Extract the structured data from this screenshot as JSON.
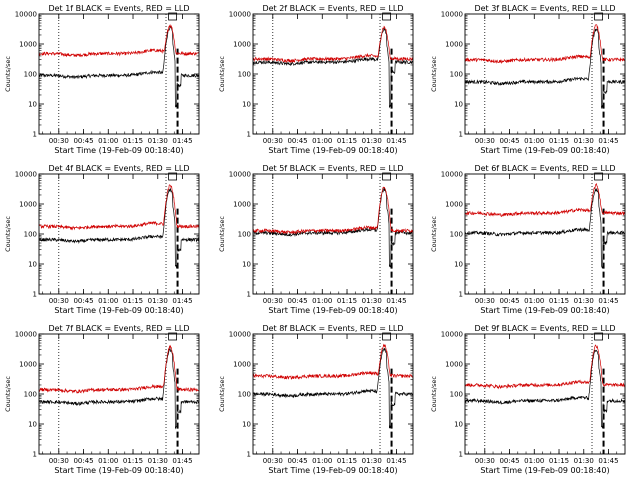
{
  "chart_data": [
    {
      "type": "line",
      "title": "Det 1f BLACK = Events, RED = LLD",
      "xlabel": "Start Time (19-Feb-09 00:18:40)",
      "ylabel": "Counts/sec",
      "yscale": "log",
      "ylim": [
        1,
        10000
      ],
      "xlim": [
        "00:18",
        "01:55"
      ],
      "xticks": [
        "00:30",
        "00:45",
        "01:00",
        "01:15",
        "01:30",
        "01:45"
      ],
      "yticks": [
        "1",
        "10",
        "100",
        "1000",
        "10000"
      ],
      "vlines": {
        "dotted": [
          "00:30",
          "01:35"
        ],
        "dashed": [
          "01:42"
        ]
      },
      "series": [
        {
          "color": "#000000",
          "base": 90,
          "peak": 3500
        },
        {
          "color": "#d00000",
          "base": 480,
          "peak": 4000
        }
      ]
    },
    {
      "type": "line",
      "title": "Det 2f BLACK = Events, RED = LLD",
      "xlabel": "Start Time (19-Feb-09 00:18:40)",
      "ylabel": "Counts/sec",
      "yscale": "log",
      "ylim": [
        1,
        10000
      ],
      "xlim": [
        "00:18",
        "01:55"
      ],
      "xticks": [
        "00:30",
        "00:45",
        "01:00",
        "01:15",
        "01:30",
        "01:45"
      ],
      "yticks": [
        "1",
        "10",
        "100",
        "1000",
        "10000"
      ],
      "vlines": {
        "dotted": [
          "00:30",
          "01:35"
        ],
        "dashed": [
          "01:42"
        ]
      },
      "series": [
        {
          "color": "#000000",
          "base": 250,
          "peak": 3000
        },
        {
          "color": "#d00000",
          "base": 320,
          "peak": 3500
        }
      ]
    },
    {
      "type": "line",
      "title": "Det 3f BLACK = Events, RED = LLD",
      "xlabel": "Start Time (19-Feb-09 00:18:40)",
      "ylabel": "Counts/sec",
      "yscale": "log",
      "ylim": [
        1,
        10000
      ],
      "xlim": [
        "00:18",
        "01:55"
      ],
      "xticks": [
        "00:30",
        "00:45",
        "01:00",
        "01:15",
        "01:30",
        "01:45"
      ],
      "yticks": [
        "1",
        "10",
        "100",
        "1000",
        "10000"
      ],
      "vlines": {
        "dotted": [
          "00:30",
          "01:35"
        ],
        "dashed": [
          "01:42"
        ]
      },
      "series": [
        {
          "color": "#000000",
          "base": 55,
          "peak": 3000
        },
        {
          "color": "#d00000",
          "base": 300,
          "peak": 4000
        }
      ]
    },
    {
      "type": "line",
      "title": "Det 4f BLACK = Events, RED = LLD",
      "xlabel": "Start Time (19-Feb-09 00:18:40)",
      "ylabel": "Counts/sec",
      "yscale": "log",
      "ylim": [
        1,
        10000
      ],
      "xlim": [
        "00:18",
        "01:55"
      ],
      "xticks": [
        "00:30",
        "00:45",
        "01:00",
        "01:15",
        "01:30",
        "01:45"
      ],
      "yticks": [
        "1",
        "10",
        "100",
        "1000",
        "10000"
      ],
      "vlines": {
        "dotted": [
          "00:30",
          "01:35"
        ],
        "dashed": [
          "01:42"
        ]
      },
      "series": [
        {
          "color": "#000000",
          "base": 65,
          "peak": 3000
        },
        {
          "color": "#d00000",
          "base": 180,
          "peak": 4000
        }
      ]
    },
    {
      "type": "line",
      "title": "Det 5f BLACK = Events, RED = LLD",
      "xlabel": "Start Time (19-Feb-09 00:18:40)",
      "ylabel": "Counts/sec",
      "yscale": "log",
      "ylim": [
        1,
        10000
      ],
      "xlim": [
        "00:18",
        "01:55"
      ],
      "xticks": [
        "00:30",
        "00:45",
        "01:00",
        "01:15",
        "01:30",
        "01:45"
      ],
      "yticks": [
        "1",
        "10",
        "100",
        "1000",
        "10000"
      ],
      "vlines": {
        "dotted": [
          "00:30",
          "01:35"
        ],
        "dashed": [
          "01:42"
        ]
      },
      "series": [
        {
          "color": "#000000",
          "base": 110,
          "peak": 3000
        },
        {
          "color": "#d00000",
          "base": 130,
          "peak": 3500
        }
      ]
    },
    {
      "type": "line",
      "title": "Det 6f BLACK = Events, RED = LLD",
      "xlabel": "Start Time (19-Feb-09 00:18:40)",
      "ylabel": "Counts/sec",
      "yscale": "log",
      "ylim": [
        1,
        10000
      ],
      "xlim": [
        "00:18",
        "01:55"
      ],
      "xticks": [
        "00:30",
        "00:45",
        "01:00",
        "01:15",
        "01:30",
        "01:45"
      ],
      "yticks": [
        "1",
        "10",
        "100",
        "1000",
        "10000"
      ],
      "vlines": {
        "dotted": [
          "00:30",
          "01:35"
        ],
        "dashed": [
          "01:42"
        ]
      },
      "series": [
        {
          "color": "#000000",
          "base": 110,
          "peak": 3000
        },
        {
          "color": "#d00000",
          "base": 500,
          "peak": 4000
        }
      ]
    },
    {
      "type": "line",
      "title": "Det 7f BLACK = Events, RED = LLD",
      "xlabel": "Start Time (19-Feb-09 00:18:40)",
      "ylabel": "Counts/sec",
      "yscale": "log",
      "ylim": [
        1,
        10000
      ],
      "xlim": [
        "00:18",
        "01:55"
      ],
      "xticks": [
        "00:30",
        "00:45",
        "01:00",
        "01:15",
        "01:30",
        "01:45"
      ],
      "yticks": [
        "1",
        "10",
        "100",
        "1000",
        "10000"
      ],
      "vlines": {
        "dotted": [
          "00:30",
          "01:35"
        ],
        "dashed": [
          "01:42"
        ]
      },
      "series": [
        {
          "color": "#000000",
          "base": 55,
          "peak": 3000
        },
        {
          "color": "#d00000",
          "base": 140,
          "peak": 3500
        }
      ]
    },
    {
      "type": "line",
      "title": "Det 8f BLACK = Events, RED = LLD",
      "xlabel": "Start Time (19-Feb-09 00:18:40)",
      "ylabel": "Counts/sec",
      "yscale": "log",
      "ylim": [
        1,
        10000
      ],
      "xlim": [
        "00:18",
        "01:55"
      ],
      "xticks": [
        "00:30",
        "00:45",
        "01:00",
        "01:15",
        "01:30",
        "01:45"
      ],
      "yticks": [
        "1",
        "10",
        "100",
        "1000",
        "10000"
      ],
      "vlines": {
        "dotted": [
          "00:30",
          "01:35"
        ],
        "dashed": [
          "01:42"
        ]
      },
      "series": [
        {
          "color": "#000000",
          "base": 100,
          "peak": 3000
        },
        {
          "color": "#d00000",
          "base": 400,
          "peak": 4000
        }
      ]
    },
    {
      "type": "line",
      "title": "Det 9f BLACK = Events, RED = LLD",
      "xlabel": "Start Time (19-Feb-09 00:18:40)",
      "ylabel": "Counts/sec",
      "yscale": "log",
      "ylim": [
        1,
        10000
      ],
      "xlim": [
        "00:18",
        "01:55"
      ],
      "xticks": [
        "00:30",
        "00:45",
        "01:00",
        "01:15",
        "01:30",
        "01:45"
      ],
      "yticks": [
        "1",
        "10",
        "100",
        "1000",
        "10000"
      ],
      "vlines": {
        "dotted": [
          "00:30",
          "01:35"
        ],
        "dashed": [
          "01:42"
        ]
      },
      "series": [
        {
          "color": "#000000",
          "base": 60,
          "peak": 3000
        },
        {
          "color": "#d00000",
          "base": 200,
          "peak": 4000
        }
      ]
    }
  ]
}
